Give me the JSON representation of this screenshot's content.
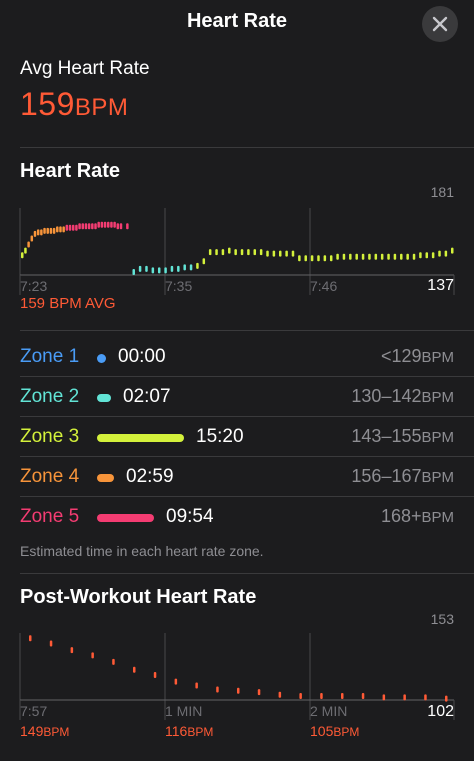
{
  "header": {
    "title": "Heart Rate",
    "close_icon": "close-icon"
  },
  "summary": {
    "label": "Avg Heart Rate",
    "value": "159",
    "unit": "BPM"
  },
  "hr_chart": {
    "title": "Heart Rate",
    "y_max_label": "181",
    "y_min_label": "137",
    "x_labels": [
      "7:23",
      "7:35",
      "7:46"
    ],
    "avg_label": "159 BPM AVG",
    "colors": {
      "zone1": "#4a9cf6",
      "zone2": "#62e4d6",
      "zone3": "#d4f13b",
      "zone4": "#f7943a",
      "zone5": "#f43c72"
    }
  },
  "zones": [
    {
      "name": "Zone 1",
      "time": "00:00",
      "range": "<129",
      "unit": "BPM",
      "fraction": 0.0,
      "color": "#4a9cf6"
    },
    {
      "name": "Zone 2",
      "time": "02:07",
      "range": "130–142",
      "unit": "BPM",
      "fraction": 0.14,
      "color": "#62e4d6"
    },
    {
      "name": "Zone 3",
      "time": "15:20",
      "range": "143–155",
      "unit": "BPM",
      "fraction": 1.0,
      "color": "#d4f13b"
    },
    {
      "name": "Zone 4",
      "time": "02:59",
      "range": "156–167",
      "unit": "BPM",
      "fraction": 0.19,
      "color": "#f7943a"
    },
    {
      "name": "Zone 5",
      "time": "09:54",
      "range": "168+",
      "unit": "BPM",
      "fraction": 0.65,
      "color": "#f43c72"
    }
  ],
  "zone_note": "Estimated time in each heart rate zone.",
  "post_workout": {
    "title": "Post-Workout Heart Rate",
    "y_max_label": "153",
    "y_min_label": "102",
    "x_labels": [
      "7:57",
      "1 MIN",
      "2 MIN"
    ],
    "values": [
      {
        "value": "149",
        "unit": "BPM"
      },
      {
        "value": "116",
        "unit": "BPM"
      },
      {
        "value": "105",
        "unit": "BPM"
      }
    ]
  },
  "chart_data": [
    {
      "type": "scatter",
      "title": "Heart Rate",
      "xlabel": "",
      "ylabel": "",
      "ylim": [
        137,
        181
      ],
      "x_ticks": [
        "7:23",
        "7:35",
        "7:46"
      ],
      "series": [
        {
          "name": "",
          "x": [
            0,
            1,
            2,
            3,
            4,
            5,
            6,
            7,
            8,
            9,
            10,
            11,
            12,
            13,
            14,
            15,
            16,
            17,
            18,
            19,
            20,
            21,
            22,
            23,
            24,
            25,
            26,
            27,
            28,
            29,
            30,
            31
          ],
          "values": [
            150,
            153,
            157,
            161,
            164,
            165,
            165,
            166,
            166,
            166,
            166,
            167,
            167,
            167,
            168,
            168,
            168,
            168,
            169,
            169,
            169,
            169,
            169,
            169,
            170,
            170,
            170,
            170,
            170,
            170,
            169,
            169
          ]
        },
        {
          "name": "",
          "x": [
            33,
            35,
            37,
            39,
            41,
            43,
            45,
            47,
            49,
            51,
            53,
            55,
            57,
            59,
            61,
            63,
            65,
            67,
            69,
            71,
            73,
            75,
            77,
            79,
            81,
            83,
            85,
            87,
            89,
            91,
            93,
            95,
            97,
            99,
            101,
            103,
            105,
            107,
            109,
            111,
            113,
            115,
            117,
            119,
            121,
            123,
            125,
            127,
            129,
            131,
            133,
            135
          ],
          "values": [
            169,
            139,
            141,
            141,
            140,
            140,
            140,
            141,
            141,
            142,
            142,
            143,
            146,
            152,
            152,
            152,
            153,
            152,
            152,
            152,
            152,
            152,
            151,
            151,
            151,
            151,
            151,
            148,
            148,
            148,
            148,
            148,
            148,
            149,
            149,
            149,
            149,
            149,
            149,
            149,
            149,
            149,
            149,
            149,
            149,
            149,
            150,
            150,
            150,
            151,
            151,
            153
          ]
        }
      ]
    },
    {
      "type": "scatter",
      "title": "Post-Workout Heart Rate",
      "xlabel": "",
      "ylabel": "",
      "ylim": [
        102,
        153
      ],
      "x_ticks": [
        "7:57",
        "1 MIN",
        "2 MIN"
      ],
      "series": [
        {
          "name": "",
          "x": [
            0,
            10,
            20,
            30,
            40,
            50,
            60,
            70,
            80,
            90,
            100,
            110,
            120,
            130,
            140,
            150,
            160,
            170,
            180,
            190,
            200
          ],
          "values": [
            149,
            145,
            140,
            136,
            131,
            125,
            121,
            116,
            113,
            110,
            109,
            108,
            106,
            105,
            105,
            105,
            105,
            104,
            104,
            104,
            103
          ]
        }
      ]
    }
  ]
}
